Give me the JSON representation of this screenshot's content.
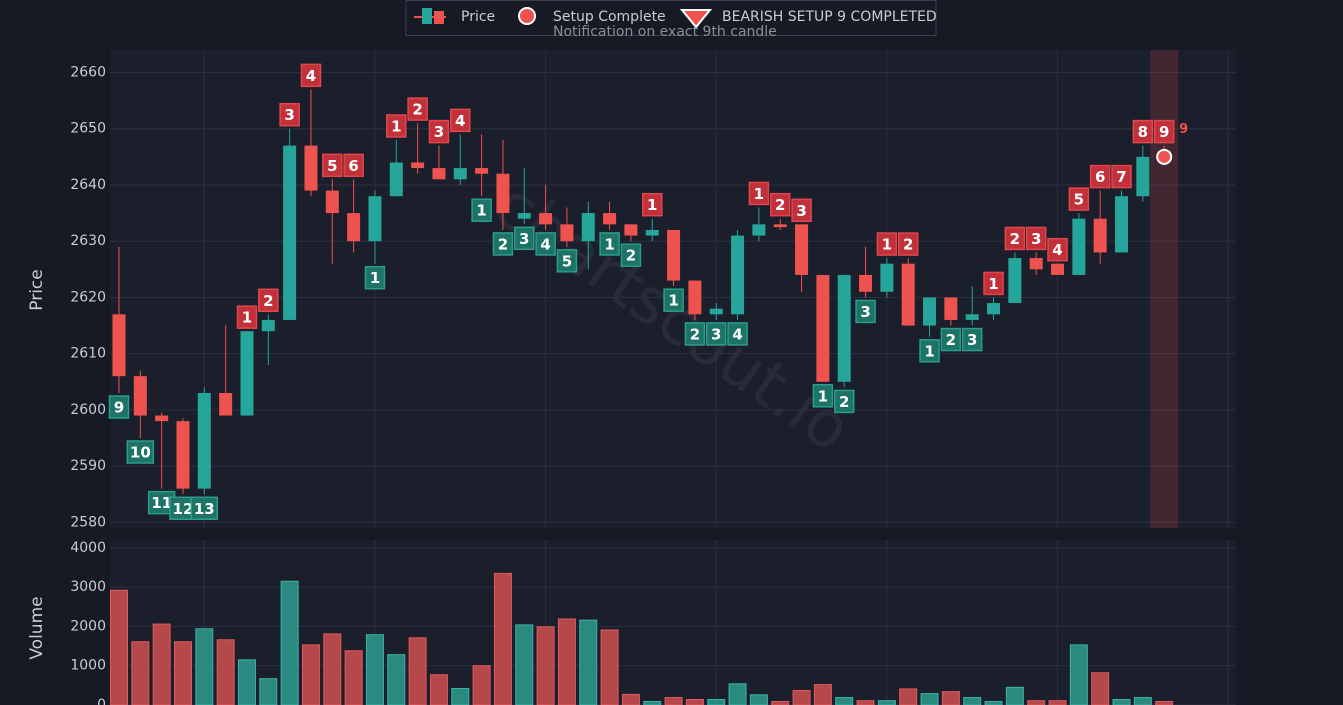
{
  "chart_data": {
    "type": "candlestick",
    "legend": {
      "price": "Price",
      "setup": "Setup Complete",
      "bearish": "BEARISH SETUP 9 COMPLETED"
    },
    "subtitle": "Notification on exact 9th candle",
    "watermark": "chartscout.io",
    "annotation": "9",
    "y_label": "Price",
    "ylim": [
      2579,
      2664
    ],
    "yticks": [
      2580,
      2590,
      2600,
      2610,
      2620,
      2630,
      2640,
      2650,
      2660
    ],
    "grid": true,
    "up_color": "#26a69a",
    "down_color": "#ef5350",
    "open": [
      2617,
      2606,
      2599,
      2598,
      2586,
      2603,
      2599,
      2614,
      2616,
      2647,
      2639,
      2635,
      2630,
      2638,
      2644,
      2643,
      2641,
      2643,
      2642,
      2634,
      2635,
      2633,
      2630,
      2635,
      2633,
      2631,
      2632,
      2623,
      2617,
      2617,
      2631,
      2633,
      2633,
      2624,
      2605,
      2624,
      2621,
      2626,
      2615,
      2620,
      2616,
      2617,
      2619,
      2627,
      2626,
      2624,
      2634,
      2628,
      2638,
      2646
    ],
    "high": [
      2629,
      2607,
      2599.5,
      2598.5,
      2604,
      2615,
      2614,
      2617,
      2650,
      2657,
      2641,
      2641,
      2639,
      2648,
      2651,
      2647,
      2649,
      2649,
      2648,
      2643,
      2640,
      2636,
      2637,
      2637,
      2633,
      2634,
      2632,
      2623,
      2619,
      2632,
      2636,
      2634,
      2633,
      2624,
      2624,
      2629,
      2627,
      2627,
      2620,
      2620,
      2622,
      2620,
      2628,
      2628,
      2626,
      2635,
      2639,
      2639,
      2647,
      2647
    ],
    "low": [
      2603,
      2595,
      2586,
      2585,
      2585,
      2599,
      2599,
      2608,
      2616,
      2638,
      2626,
      2628,
      2626,
      2638,
      2642,
      2641,
      2640,
      2638,
      2632,
      2633,
      2632,
      2629,
      2625,
      2632,
      2630,
      2630,
      2622,
      2616,
      2616,
      2616,
      2630,
      2632,
      2621,
      2605,
      2604,
      2620,
      2620,
      2615,
      2613,
      2615,
      2615,
      2616,
      2619,
      2624,
      2624,
      2624,
      2626,
      2628,
      2637,
      2645
    ],
    "close": [
      2606,
      2599,
      2598,
      2586,
      2603,
      2599,
      2614,
      2616,
      2647,
      2639,
      2635,
      2630,
      2638,
      2644,
      2643,
      2641,
      2643,
      2642,
      2635,
      2635,
      2633,
      2630,
      2635,
      2633,
      2631,
      2632,
      2623,
      2617,
      2618,
      2631,
      2633,
      2632.5,
      2624,
      2605,
      2624,
      2621,
      2626,
      2615,
      2620,
      2616,
      2617,
      2619,
      2627,
      2625,
      2624,
      2634,
      2628,
      2638,
      2645,
      2645
    ],
    "volume_label": "Volume",
    "volume": [
      2920,
      1610,
      2060,
      1610,
      1940,
      1660,
      1150,
      670,
      3150,
      1530,
      1810,
      1380,
      1790,
      1280,
      1710,
      770,
      420,
      1000,
      3350,
      2040,
      1990,
      2190,
      2160,
      1910,
      270,
      90,
      190,
      140,
      140,
      540,
      260,
      90,
      370,
      520,
      190,
      110,
      110,
      410,
      290,
      340,
      190,
      90,
      450,
      110,
      110,
      1530,
      820,
      140,
      190,
      90
    ],
    "volume_ylim": [
      0,
      4200
    ],
    "volume_yticks": [
      0,
      1000,
      2000,
      3000,
      4000
    ],
    "setup_marker": {
      "index": 49,
      "value": 2645
    },
    "td_labels": [
      {
        "index": 0,
        "text": "9",
        "side": "below"
      },
      {
        "index": 1,
        "text": "10",
        "side": "below"
      },
      {
        "index": 2,
        "text": "11",
        "side": "below"
      },
      {
        "index": 3,
        "text": "12",
        "side": "below"
      },
      {
        "index": 4,
        "text": "13",
        "side": "below"
      },
      {
        "index": 6,
        "text": "1",
        "side": "above"
      },
      {
        "index": 7,
        "text": "2",
        "side": "above"
      },
      {
        "index": 8,
        "text": "3",
        "side": "above"
      },
      {
        "index": 9,
        "text": "4",
        "side": "above"
      },
      {
        "index": 10,
        "text": "5",
        "side": "above"
      },
      {
        "index": 11,
        "text": "6",
        "side": "above"
      },
      {
        "index": 12,
        "text": "1",
        "side": "below"
      },
      {
        "index": 13,
        "text": "1",
        "side": "above"
      },
      {
        "index": 14,
        "text": "2",
        "side": "above"
      },
      {
        "index": 15,
        "text": "3",
        "side": "above"
      },
      {
        "index": 16,
        "text": "4",
        "side": "above"
      },
      {
        "index": 17,
        "text": "1",
        "side": "below"
      },
      {
        "index": 18,
        "text": "2",
        "side": "below"
      },
      {
        "index": 19,
        "text": "3",
        "side": "below"
      },
      {
        "index": 20,
        "text": "4",
        "side": "below"
      },
      {
        "index": 21,
        "text": "5",
        "side": "below"
      },
      {
        "index": 23,
        "text": "1",
        "side": "below"
      },
      {
        "index": 24,
        "text": "2",
        "side": "below"
      },
      {
        "index": 25,
        "text": "1",
        "side": "above"
      },
      {
        "index": 26,
        "text": "1",
        "side": "below"
      },
      {
        "index": 27,
        "text": "2",
        "side": "below"
      },
      {
        "index": 28,
        "text": "3",
        "side": "below"
      },
      {
        "index": 29,
        "text": "4",
        "side": "below"
      },
      {
        "index": 30,
        "text": "1",
        "side": "above"
      },
      {
        "index": 31,
        "text": "2",
        "side": "above"
      },
      {
        "index": 32,
        "text": "3",
        "side": "above"
      },
      {
        "index": 33,
        "text": "1",
        "side": "below"
      },
      {
        "index": 34,
        "text": "2",
        "side": "below"
      },
      {
        "index": 35,
        "text": "3",
        "side": "below"
      },
      {
        "index": 36,
        "text": "1",
        "side": "above"
      },
      {
        "index": 37,
        "text": "2",
        "side": "above"
      },
      {
        "index": 38,
        "text": "1",
        "side": "below"
      },
      {
        "index": 39,
        "text": "2",
        "side": "below"
      },
      {
        "index": 40,
        "text": "3",
        "side": "below"
      },
      {
        "index": 41,
        "text": "1",
        "side": "above"
      },
      {
        "index": 42,
        "text": "2",
        "side": "above"
      },
      {
        "index": 43,
        "text": "3",
        "side": "above"
      },
      {
        "index": 44,
        "text": "4",
        "side": "above"
      },
      {
        "index": 45,
        "text": "5",
        "side": "above"
      },
      {
        "index": 46,
        "text": "6",
        "side": "above"
      },
      {
        "index": 47,
        "text": "7",
        "side": "above"
      },
      {
        "index": 48,
        "text": "8",
        "side": "above"
      },
      {
        "index": 49,
        "text": "9",
        "side": "above"
      }
    ]
  }
}
